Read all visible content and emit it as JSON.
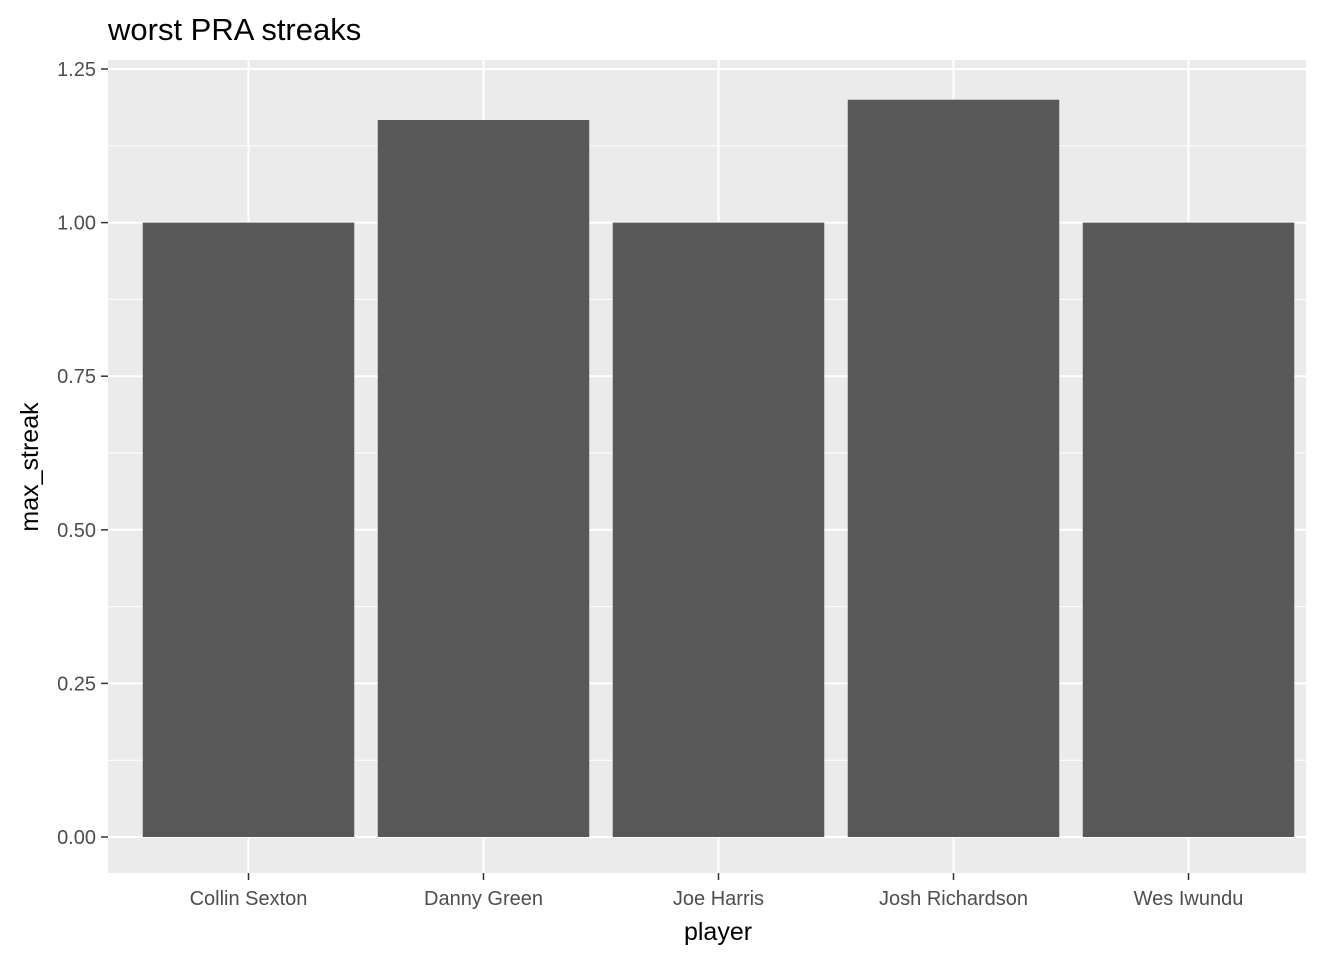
{
  "chart_data": {
    "type": "bar",
    "title": "worst PRA streaks",
    "xlabel": "player",
    "ylabel": "max_streak",
    "categories": [
      "Collin Sexton",
      "Danny Green",
      "Joe Harris",
      "Josh Richardson",
      "Wes Iwundu"
    ],
    "values": [
      1.0,
      1.167,
      1.0,
      1.2,
      1.0
    ],
    "ylim": [
      0,
      1.25
    ],
    "yticks": [
      "0.00",
      "0.25",
      "0.50",
      "0.75",
      "1.00",
      "1.25"
    ],
    "grid": true,
    "legend": "none",
    "colors": {
      "panel_background": "#ebebeb",
      "grid_line": "#ffffff",
      "bar_fill": "#595959",
      "tick_text": "#4d4d4d"
    }
  }
}
